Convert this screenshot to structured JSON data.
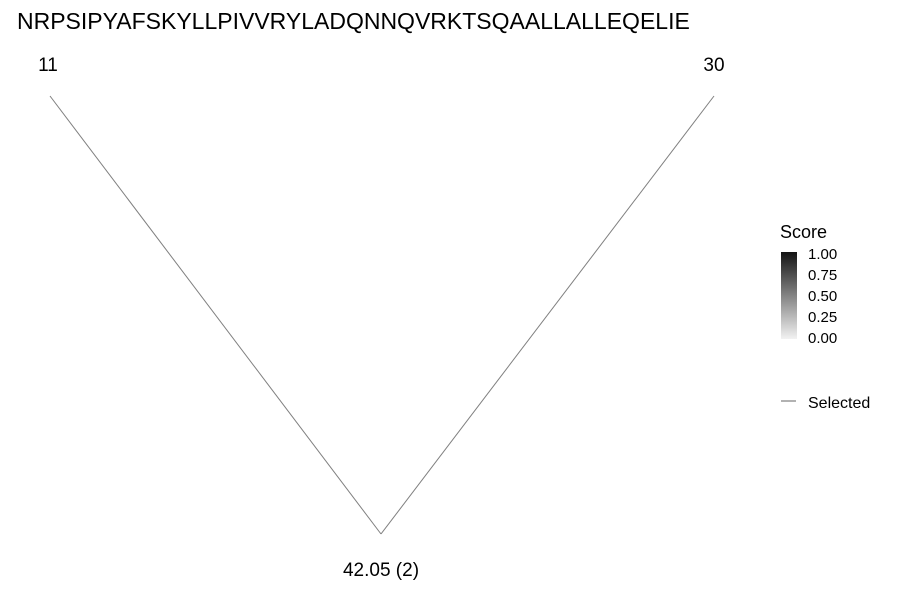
{
  "chart_data": {
    "type": "diagram",
    "sequence": "NRPSIPYAFSKYLLPIVVRYLADQNNQVRKTSQAALLALLEQELIE",
    "left_position": "11",
    "right_position": "30",
    "apex_label": "42.05 (2)",
    "edges": [
      {
        "from": "11",
        "to": "apex",
        "selected": true
      },
      {
        "from": "30",
        "to": "apex",
        "selected": true
      }
    ],
    "legend": {
      "title": "Score",
      "range": [
        0,
        1
      ],
      "ticks": [
        "1.00",
        "0.75",
        "0.50",
        "0.25",
        "0.00"
      ],
      "gradient_colors": [
        "#f2f2f2",
        "#141414"
      ],
      "selected_label": "Selected",
      "line_color": "#7f7f7f"
    }
  }
}
